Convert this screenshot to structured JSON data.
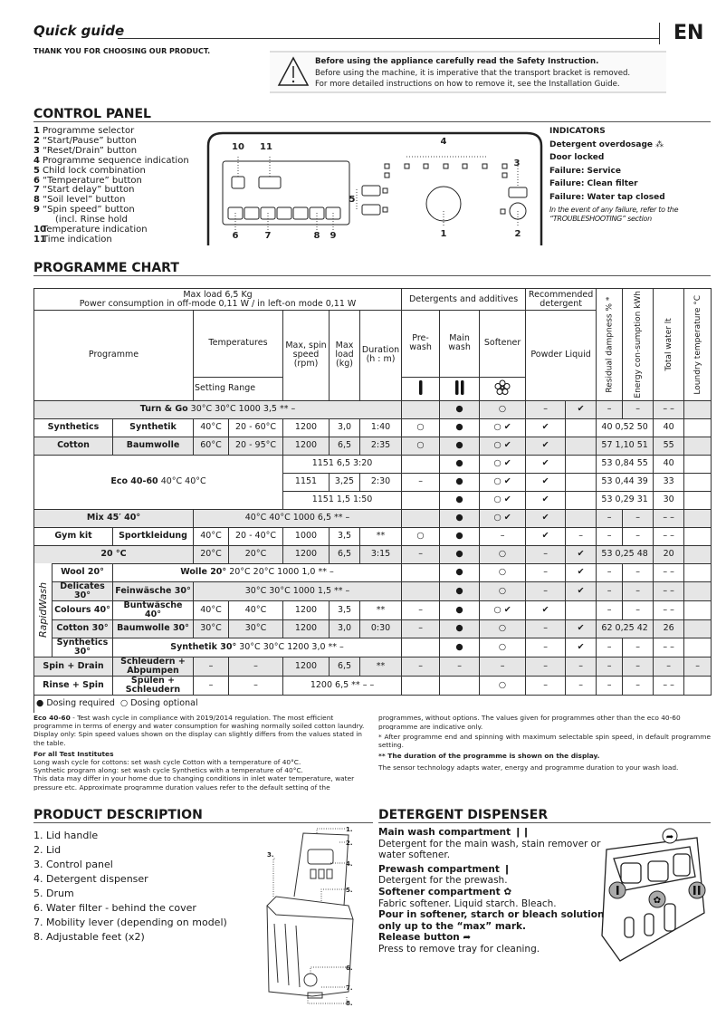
{
  "header": {
    "title": "Quick guide",
    "lang": "EN",
    "thanks": "THANK YOU FOR CHOOSING OUR PRODUCT."
  },
  "warning": {
    "title": "Before using the appliance carefully read the Safety Instruction.",
    "line1": "Before using the machine, it is imperative that the transport bracket is removed.",
    "line2": "For more detailed instructions on how to remove it, see the Installation Guide."
  },
  "control_panel": {
    "title": "CONTROL PANEL",
    "items": [
      {
        "n": "1",
        "label": "Programme selector"
      },
      {
        "n": "2",
        "label": "“Start/Pause” button"
      },
      {
        "n": "3",
        "label": "“Reset/Drain” button"
      },
      {
        "n": "4",
        "label": "Programme sequence indication"
      },
      {
        "n": "5",
        "label": "Child lock combination"
      },
      {
        "n": "6",
        "label": "“Temperature” button"
      },
      {
        "n": "7",
        "label": "“Start delay” button"
      },
      {
        "n": "8",
        "label": "“Soil level” button"
      },
      {
        "n": "9",
        "label": "“Spin speed” button"
      },
      {
        "n": "",
        "label": "(incl. Rinse hold"
      },
      {
        "n": "10",
        "label": "Temperature indication"
      },
      {
        "n": "11",
        "label": "Time indication"
      }
    ],
    "diagram_labels": [
      "10",
      "11",
      "4",
      "3",
      "5",
      "6",
      "7",
      "8",
      "9",
      "1",
      "2"
    ],
    "indicators": {
      "title": "INDICATORS",
      "items": [
        "Detergent overdosage",
        "Door locked",
        "Failure: Service",
        "Failure: Clean filter",
        "Failure: Water tap closed"
      ],
      "note": "In the event of any failure, refer to the “TROUBLESHOOTING” section"
    }
  },
  "programme_chart": {
    "title": "PROGRAMME CHART",
    "header": {
      "max_load": "Max load 6,5 Kg",
      "power": "Power consumption in off-mode 0,11 W / in left-on mode 0,11 W",
      "detergents": "Detergents and additives",
      "recommended": "Recommended detergent",
      "residual": "Residual dampness % *",
      "energy": "Energy con-sumption kWh",
      "water": "Total water lt",
      "laundry_temp": "Loundry temperature °C",
      "programme": "Programme",
      "temperatures": "Temperatures",
      "setting_range": "Setting Range",
      "spin": "Max, spin speed (rpm)",
      "load": "Max load (kg)",
      "duration": "Duration (h : m)",
      "prewash": "Pre-wash",
      "mainwash": "Main wash",
      "softener": "Softener",
      "powder_liquid": "Powder Liquid"
    },
    "rapid_label": "RapidWash",
    "rows": [
      {
        "shade": true,
        "cells": [
          {
            "b": "Turn & Go",
            "t": " 30°C 30°C 1000 3,5 ** –",
            "span": 8
          },
          "",
          "●",
          "○",
          "–",
          "✔",
          "–",
          "–",
          "– –",
          ""
        ]
      },
      {
        "cells": [
          {
            "b": "Synthetics",
            "span": 2
          },
          {
            "b": "Synthetik"
          },
          "40°C",
          "20 - 60°C",
          "1200",
          "3,0",
          "1:40",
          "○",
          "●",
          "○ ✔",
          "✔",
          "",
          {
            "t": "40 0,52 50",
            "span": 2
          },
          "40",
          ""
        ]
      },
      {
        "shade": true,
        "cells": [
          {
            "b": "Cotton",
            "span": 2
          },
          {
            "b": "Baumwolle"
          },
          "60°C",
          "20 - 95°C",
          "1200",
          "6,5",
          "2:35",
          "○",
          "●",
          "○ ✔",
          "✔",
          "",
          {
            "t": "57 1,10 51",
            "span": 2
          },
          "55",
          ""
        ]
      },
      {
        "cells": [
          {
            "b": "Eco 40-60",
            "t": " 40°C 40°C",
            "span": 5,
            "rowspan": 3
          },
          {
            "t": "1151 6,5 3:20",
            "span": 3
          },
          "",
          "●",
          "○ ✔",
          "✔",
          "",
          {
            "t": "53 0,84 55",
            "span": 2
          },
          "40",
          ""
        ]
      },
      {
        "cells": [
          "1151",
          "3,25",
          "2:30",
          "–",
          "●",
          "○ ✔",
          "✔",
          "",
          {
            "t": "53 0,44 39",
            "span": 2
          },
          "33",
          ""
        ]
      },
      {
        "cells": [
          {
            "t": "1151 1,5 1:50",
            "span": 3
          },
          "",
          "●",
          "○ ✔",
          "✔",
          "",
          {
            "t": "53 0,29 31",
            "span": 2
          },
          "30",
          ""
        ]
      },
      {
        "shade": true,
        "cells": [
          {
            "b": "Mix 45′ 40°",
            "span": 3
          },
          {
            "t": "40°C 40°C 1000 6,5 ** –",
            "span": 5
          },
          "",
          "●",
          "○ ✔",
          "✔",
          "",
          "–",
          "–",
          "– –",
          ""
        ]
      },
      {
        "cells": [
          {
            "b": "Gym kit",
            "span": 2
          },
          {
            "b": "Sportkleidung"
          },
          "40°C",
          "20 - 40°C",
          "1000",
          "3,5",
          "**",
          "○",
          "●",
          "–",
          "✔",
          "–",
          "–",
          "–",
          "– –",
          ""
        ]
      },
      {
        "shade": true,
        "cells": [
          {
            "b": "20 °C",
            "span": 3
          },
          "20°C",
          "20°C",
          "1200",
          "6,5",
          "3:15",
          "–",
          "●",
          "○",
          "–",
          "✔",
          {
            "t": "53 0,25 48",
            "span": 2
          },
          "20",
          ""
        ]
      },
      {
        "rapid": true,
        "cells": [
          {
            "b": "Wool 20°"
          },
          {
            "b": "Wolle 20°",
            "t": " 20°C 20°C 1000 1,0 ** –",
            "span": 6
          },
          "",
          "●",
          "○",
          "–",
          "✔",
          "–",
          "–",
          "– –",
          ""
        ]
      },
      {
        "shade": true,
        "cells": [
          {
            "b": "Delicates 30°"
          },
          {
            "b": "Feinwäsche 30°"
          },
          {
            "t": "30°C 30°C 1000 1,5 ** –",
            "span": 5
          },
          "",
          "●",
          "○",
          "–",
          "✔",
          "–",
          "–",
          "– –",
          ""
        ]
      },
      {
        "cells": [
          {
            "b": "Colours 40°"
          },
          {
            "b": "Buntwäsche 40°"
          },
          "40°C",
          "40°C",
          "1200",
          "3,5",
          "**",
          "–",
          "●",
          "○ ✔",
          "✔",
          "",
          "–",
          "–",
          "– –",
          ""
        ]
      },
      {
        "shade": true,
        "cells": [
          {
            "b": "Cotton 30°"
          },
          {
            "b": "Baumwolle 30°"
          },
          "30°C",
          "30°C",
          "1200",
          "3,0",
          "0:30",
          "–",
          "●",
          "○",
          "–",
          "✔",
          {
            "t": "62 0,25 42",
            "span": 2
          },
          "26",
          ""
        ]
      },
      {
        "cells": [
          {
            "b": "Synthetics 30°"
          },
          {
            "b": "Synthetik 30°",
            "t": " 30°C 30°C 1200 3,0 ** –",
            "span": 6
          },
          "",
          "●",
          "○",
          "–",
          "✔",
          "–",
          "–",
          "– –",
          ""
        ]
      },
      {
        "shade": true,
        "cells": [
          {
            "b": "Spin + Drain",
            "span": 2
          },
          {
            "b": "Schleudern + Abpumpen"
          },
          "–",
          "–",
          "1200",
          "6,5",
          "**",
          "–",
          "–",
          "–",
          "–",
          "–",
          "–",
          "–",
          "–",
          "–"
        ]
      },
      {
        "cells": [
          {
            "b": "Rinse + Spin",
            "span": 2
          },
          {
            "b": "Spülen + Schleudern"
          },
          "–",
          "–",
          {
            "t": "1200 6,5 ** – –",
            "span": 3
          },
          "",
          "",
          "○",
          "–",
          "–",
          "–",
          "–",
          "– –",
          ""
        ]
      }
    ],
    "legend": {
      "required": "Dosing required",
      "optional": "Dosing optional"
    }
  },
  "notes": {
    "eco_b": "Eco 40-60",
    "eco": " - Test wash cycle in compliance with 2019/2014 regulation. The most efficient programme in terms of energy and water consumption for washing normally soiled cotton laundry. Display only: Spin speed values shown on the display can slightly differs from the values stated in the table.",
    "test_title": "For all Test Institutes",
    "test1": "Long wash cycle for cottons:  set wash cycle Cotton with a temperature of 40°C.",
    "test2": "Synthetic program along:  set wash cycle Synthetics with a temperature of 40°C.",
    "test3": "This data may differ in your home due to changing conditions in inlet water temperature, water pressure etc. Approximate programme duration values refer to the default setting of the programmes, without options. The values given for programmes other than the eco 40-60 programme are indicative only.",
    "star1": "* After programme end and spinning with maximum selectable spin speed, in default programme setting.",
    "star2": "** The duration of the programme is shown on the display.",
    "sensor": "The sensor technology adapts water, energy and programme duration to your wash load."
  },
  "product_description": {
    "title": "PRODUCT DESCRIPTION",
    "items": [
      "1. Lid handle",
      "2. Lid",
      "3. Control panel",
      "4. Detergent dispenser",
      "5. Drum",
      "6. Water filter - behind the cover",
      "7. Mobility lever (depending on model)",
      "8. Adjustable feet (x2)"
    ],
    "callouts": [
      "1.",
      "2.",
      "3.",
      "4.",
      "5.",
      "6.",
      "7.",
      "8."
    ]
  },
  "detergent_dispenser": {
    "title": "DETERGENT DISPENSER",
    "main_title": "Main wash compartment",
    "main_text": "Detergent for the main wash, stain remover or water softener.",
    "pre_title": "Prewash compartment",
    "pre_text": "Detergent for the prewash.",
    "soft_title": "Softener compartment",
    "soft_text": "Fabric softener. Liquid starch. Bleach.",
    "pour": "Pour in softener, starch or bleach  solution only up to the “max” mark.",
    "release_title": "Release button",
    "release_text": "Press to remove tray for cleaning."
  }
}
